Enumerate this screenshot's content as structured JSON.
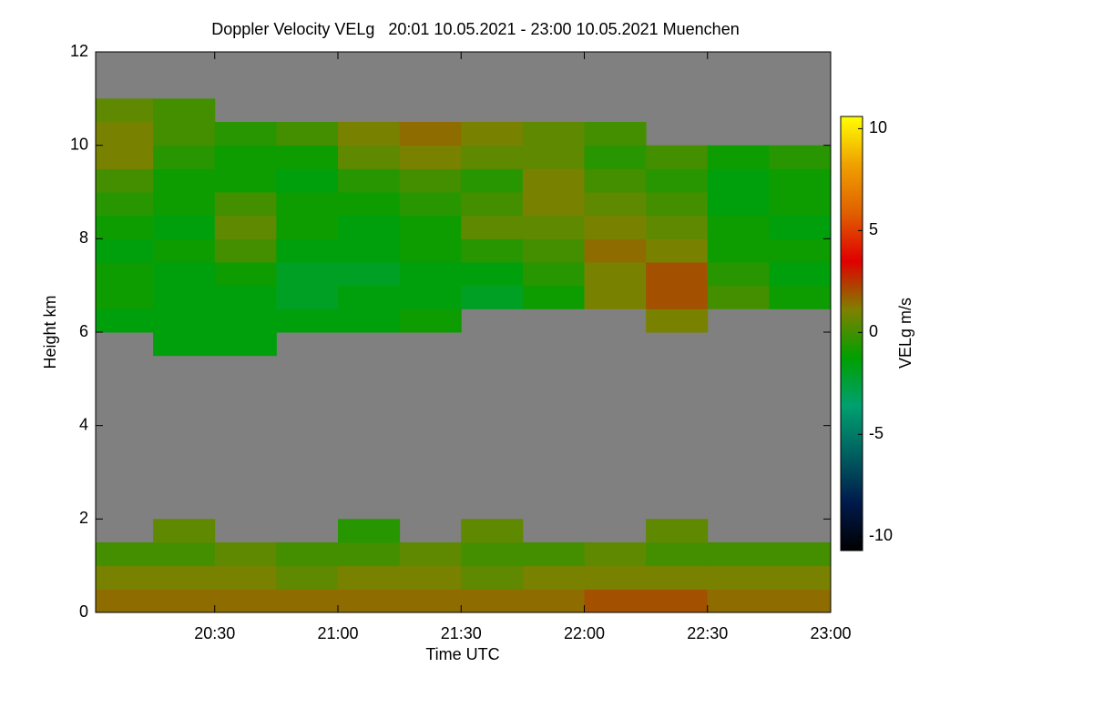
{
  "chart_data": {
    "type": "heatmap",
    "title": "Doppler Velocity VELg   20:01 10.05.2021 - 23:00 10.05.2021 Muenchen",
    "x_label": "Time UTC",
    "y_label": "Height km",
    "colorbar_label": "VELg m/s",
    "xbins": [
      "20:00",
      "20:15",
      "20:30",
      "20:45",
      "21:00",
      "21:15",
      "21:30",
      "21:45",
      "22:00",
      "22:15",
      "22:30",
      "22:45",
      "23:00"
    ],
    "ybins": [
      0,
      0.5,
      1,
      1.5,
      2,
      2.5,
      3,
      3.5,
      4,
      4.5,
      5,
      5.5,
      6,
      6.5,
      7,
      7.5,
      8,
      8.5,
      9,
      9.5,
      10,
      10.5,
      11,
      11.5,
      12
    ],
    "z": [
      [
        1.5,
        1.5,
        1.5,
        1.5,
        1.5,
        1.5,
        1.5,
        1.5,
        2,
        2,
        1.5,
        1.5
      ],
      [
        1,
        1,
        1,
        0.5,
        1,
        1,
        0.5,
        1,
        1,
        1,
        1,
        1
      ],
      [
        0,
        0,
        0.5,
        0,
        0,
        0.5,
        0,
        0,
        0.5,
        0,
        0,
        0
      ],
      [
        null,
        0.5,
        null,
        null,
        -0.5,
        null,
        0.5,
        null,
        null,
        0.5,
        null,
        null
      ],
      [
        null,
        null,
        null,
        null,
        null,
        null,
        null,
        null,
        null,
        null,
        null,
        null
      ],
      [
        null,
        null,
        null,
        null,
        null,
        null,
        null,
        null,
        null,
        null,
        null,
        null
      ],
      [
        null,
        null,
        null,
        null,
        null,
        null,
        null,
        null,
        null,
        null,
        null,
        null
      ],
      [
        null,
        null,
        null,
        null,
        null,
        null,
        null,
        null,
        null,
        null,
        null,
        null
      ],
      [
        null,
        null,
        null,
        null,
        null,
        null,
        null,
        null,
        null,
        null,
        null,
        null
      ],
      [
        null,
        null,
        null,
        null,
        null,
        null,
        null,
        null,
        null,
        null,
        null,
        null
      ],
      [
        null,
        null,
        null,
        null,
        null,
        null,
        null,
        null,
        null,
        null,
        null,
        null
      ],
      [
        null,
        -1.5,
        -1.5,
        null,
        null,
        null,
        null,
        null,
        null,
        null,
        null,
        null
      ],
      [
        -1.5,
        -1.5,
        -1.5,
        -1.5,
        -1.5,
        -1,
        null,
        null,
        null,
        1,
        null,
        null
      ],
      [
        -1,
        -1.5,
        -1.5,
        -2,
        -1.5,
        -1.5,
        -2,
        -1,
        1,
        2,
        0,
        -1
      ],
      [
        -1,
        -1.5,
        -1,
        -2,
        -2,
        -1.5,
        -1.5,
        -0.5,
        1,
        2,
        -0.5,
        -1.5
      ],
      [
        -1.5,
        -1,
        0,
        -1.5,
        -1.5,
        -1,
        -0.5,
        0,
        1.5,
        1,
        -1,
        -1
      ],
      [
        -1,
        -1.5,
        0.5,
        -1,
        -1.5,
        -1,
        0.5,
        0.5,
        1,
        0.5,
        -1,
        -1.5
      ],
      [
        -0.5,
        -1,
        0,
        -1,
        -1,
        -0.5,
        0,
        1,
        0.5,
        0,
        -1.5,
        -1
      ],
      [
        0,
        -1,
        -1,
        -1.5,
        -0.5,
        0,
        -0.5,
        1,
        0,
        -0.5,
        -1.5,
        -1
      ],
      [
        1,
        -0.5,
        -1,
        -1,
        0.5,
        1,
        0.5,
        0.5,
        -0.5,
        0,
        -1,
        -0.5
      ],
      [
        1,
        0,
        -0.5,
        0,
        1,
        1.5,
        1,
        0.5,
        0,
        null,
        null,
        null
      ],
      [
        0.5,
        0,
        null,
        null,
        null,
        null,
        null,
        null,
        null,
        null,
        null,
        null
      ],
      [
        null,
        null,
        null,
        null,
        null,
        null,
        null,
        null,
        null,
        null,
        null,
        null
      ],
      [
        null,
        null,
        null,
        null,
        null,
        null,
        null,
        null,
        null,
        null,
        null,
        null
      ]
    ],
    "xlim": [
      "20:01",
      "23:00"
    ],
    "xticks": [
      "20:30",
      "21:00",
      "21:30",
      "22:00",
      "22:30",
      "23:00"
    ],
    "ylim": [
      0,
      12
    ],
    "yticks": [
      0,
      2,
      4,
      6,
      8,
      10,
      12
    ],
    "zlim": [
      -10.7,
      10.6
    ],
    "zticks": [
      -10,
      -5,
      0,
      5,
      10
    ],
    "colormap": [
      "#000000",
      "#001a4d",
      "#006060",
      "#00a070",
      "#00a000",
      "#808000",
      "#e00000",
      "#e06000",
      "#f0a000",
      "#ffff00"
    ],
    "missing_color": "#808080"
  }
}
